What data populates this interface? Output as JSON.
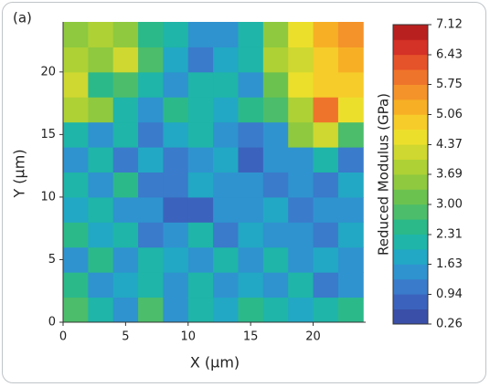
{
  "chart_data": {
    "type": "heatmap",
    "panel_label": "(a)",
    "x_label": "X (μm)",
    "y_label": "Y (μm)",
    "colorbar_label": "Reduced Modulus (GPa)",
    "xlim": [
      0,
      24.2
    ],
    "ylim": [
      0,
      24
    ],
    "xticks": [
      0,
      5,
      10,
      15,
      20
    ],
    "yticks": [
      0,
      5,
      10,
      15,
      20
    ],
    "x_edges": [
      0,
      2,
      4,
      6,
      8,
      10,
      12,
      14,
      16,
      18,
      20,
      22,
      24
    ],
    "y_edges": [
      0,
      2,
      4,
      6,
      8,
      10,
      12,
      14,
      16,
      18,
      20,
      22,
      24
    ],
    "z": [
      [
        3.0,
        2.0,
        1.6,
        2.8,
        1.6,
        2.2,
        1.8,
        2.6,
        2.2,
        1.8,
        2.0,
        2.4
      ],
      [
        2.4,
        1.6,
        1.8,
        2.2,
        1.4,
        2.0,
        1.6,
        1.8,
        1.4,
        2.0,
        1.2,
        1.6
      ],
      [
        1.6,
        2.6,
        1.4,
        2.0,
        1.8,
        1.4,
        2.2,
        1.6,
        2.0,
        1.4,
        1.8,
        1.6
      ],
      [
        2.4,
        1.8,
        2.2,
        1.2,
        1.6,
        2.0,
        1.2,
        1.8,
        1.4,
        1.6,
        1.2,
        1.8
      ],
      [
        1.8,
        2.2,
        1.6,
        1.4,
        0.7,
        0.9,
        1.6,
        1.4,
        1.8,
        1.2,
        1.6,
        1.4
      ],
      [
        2.0,
        1.4,
        2.4,
        1.2,
        1.0,
        1.8,
        1.4,
        1.6,
        1.0,
        1.4,
        1.2,
        1.8
      ],
      [
        1.6,
        2.2,
        1.0,
        1.8,
        1.2,
        1.6,
        1.8,
        0.8,
        1.4,
        1.6,
        2.2,
        1.2
      ],
      [
        2.2,
        1.6,
        2.0,
        1.2,
        1.8,
        2.2,
        1.4,
        1.2,
        1.6,
        3.4,
        4.2,
        3.0
      ],
      [
        3.8,
        3.4,
        2.2,
        1.4,
        2.4,
        2.0,
        1.8,
        2.4,
        3.0,
        4.0,
        5.8,
        4.4
      ],
      [
        4.2,
        2.6,
        3.0,
        2.0,
        1.4,
        2.2,
        2.0,
        1.6,
        3.2,
        4.6,
        5.0,
        4.8
      ],
      [
        4.0,
        3.5,
        4.2,
        2.8,
        1.8,
        1.2,
        1.8,
        2.2,
        3.8,
        4.2,
        5.0,
        5.4
      ],
      [
        3.6,
        3.8,
        3.4,
        2.6,
        2.0,
        1.4,
        1.6,
        2.0,
        3.4,
        4.4,
        5.2,
        5.6
      ]
    ],
    "colorbar_lim": [
      0.26,
      7.12
    ],
    "colorbar_ticks": [
      0.26,
      0.94,
      1.63,
      2.31,
      {
        "value": 3,
        "label": "3.00"
      },
      3.69,
      4.37,
      5.06,
      5.75,
      6.43,
      7.12
    ],
    "colors": [
      "#3a4fa8",
      "#3b63bd",
      "#3a7bcb",
      "#2f93cf",
      "#22a8c4",
      "#1fb5a8",
      "#2bb98a",
      "#4cbd6a",
      "#6cc24f",
      "#8ec93f",
      "#aed136",
      "#cfd830",
      "#ecdf2c",
      "#f6cc2a",
      "#f7b025",
      "#f4932a",
      "#ef742b",
      "#e5532a",
      "#d43127",
      "#b8201f"
    ]
  }
}
